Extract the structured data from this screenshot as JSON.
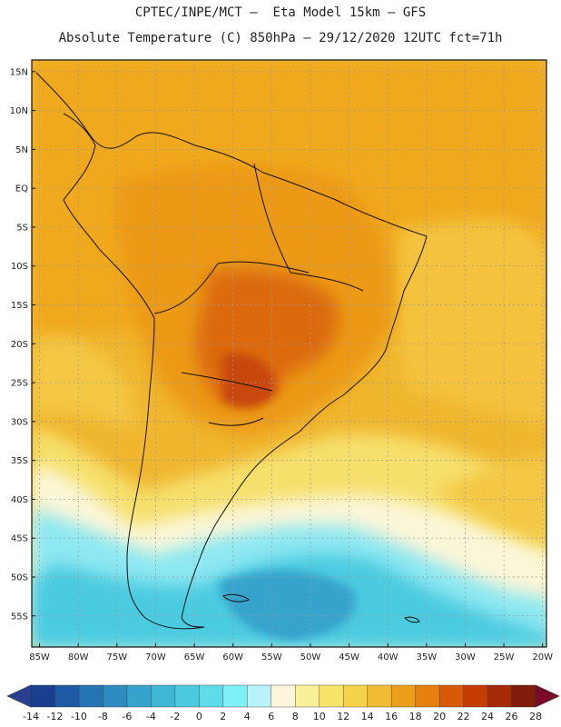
{
  "header": {
    "line1": "CPTEC/INPE/MCT —  Eta Model 15km — GFS",
    "line2": "Absolute Temperature (C) 850hPa — 29/12/2020 12UTC fct=71h"
  },
  "map": {
    "lon_range": [
      -86,
      -19.5
    ],
    "lat_range": [
      -59,
      16.5
    ],
    "lat_labels": [
      "15N",
      "10N",
      "5N",
      "EQ",
      "5S",
      "10S",
      "15S",
      "20S",
      "25S",
      "30S",
      "35S",
      "40S",
      "45S",
      "50S",
      "55S"
    ],
    "lat_values": [
      15,
      10,
      5,
      0,
      -5,
      -10,
      -15,
      -20,
      -25,
      -30,
      -35,
      -40,
      -45,
      -50,
      -55
    ],
    "lon_labels": [
      "85W",
      "80W",
      "75W",
      "70W",
      "65W",
      "60W",
      "55W",
      "50W",
      "45W",
      "40W",
      "35W",
      "30W",
      "25W",
      "20W"
    ],
    "lon_values": [
      -85,
      -80,
      -75,
      -70,
      -65,
      -60,
      -55,
      -50,
      -45,
      -40,
      -35,
      -30,
      -25,
      -20
    ]
  },
  "colorbar": {
    "labels": [
      "-14",
      "-12",
      "-10",
      "-8",
      "-6",
      "-4",
      "-2",
      "0",
      "2",
      "4",
      "6",
      "8",
      "10",
      "12",
      "14",
      "16",
      "18",
      "20",
      "22",
      "24",
      "26",
      "28"
    ],
    "colors": [
      "#1a3f8f",
      "#1f5aa6",
      "#2774b4",
      "#2f8cc1",
      "#36a3cc",
      "#3fb8d6",
      "#4ccbe0",
      "#5fdcea",
      "#7ef0f6",
      "#b8f2fa",
      "#fdf6dc",
      "#fbf09a",
      "#f8e36a",
      "#f4d24a",
      "#f0bc34",
      "#ec9f1a",
      "#e57f0d",
      "#d95a06",
      "#c63d04",
      "#a62a05",
      "#7f1c0c"
    ],
    "under_color": "#2a3f8f",
    "over_color": "#7a0a26"
  }
}
